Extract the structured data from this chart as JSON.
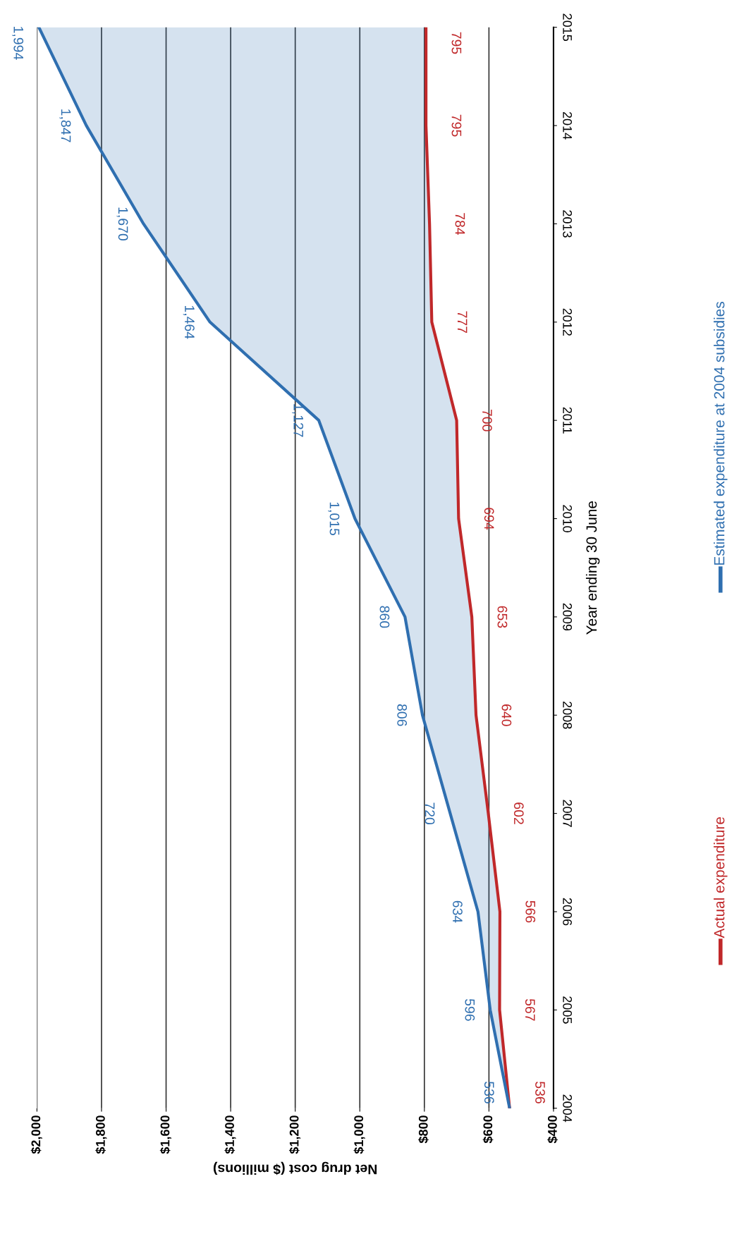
{
  "chart_data": {
    "type": "line",
    "orientation": "horizontal",
    "xlabel": "Net drug cost ($ millions)",
    "ylabel": "Year ending 30 June",
    "categories": [
      "2015",
      "2014",
      "2013",
      "2012",
      "2011",
      "2010",
      "2009",
      "2008",
      "2007",
      "2006",
      "2005",
      "2004"
    ],
    "series": [
      {
        "name": "Actual expenditure",
        "color": "#c0282a",
        "values": [
          795,
          795,
          784,
          777,
          700,
          694,
          653,
          640,
          602,
          566,
          567,
          536
        ],
        "value_labels": [
          "795",
          "795",
          "784",
          "777",
          "700",
          "694",
          "653",
          "640",
          "602",
          "566",
          "567",
          "536"
        ]
      },
      {
        "name": "Estimated expenditure at 2004 subsidies",
        "color": "#2f6fb0",
        "values": [
          1994,
          1847,
          1670,
          1464,
          1127,
          1015,
          860,
          806,
          720,
          634,
          596,
          536
        ],
        "lower": [
          795,
          795,
          784,
          777,
          700,
          694,
          653,
          640,
          602,
          566,
          567,
          536
        ],
        "upper": [
          1994,
          1847,
          1670,
          1464,
          1127,
          1015,
          860,
          806,
          720,
          634,
          596,
          536
        ],
        "value_labels": [
          "1,994",
          "1,847",
          "1,670",
          "1,464",
          "1,127",
          "1,015",
          "860",
          "806",
          "720",
          "634",
          "596",
          "536"
        ]
      }
    ],
    "xlim": [
      2000,
      400
    ],
    "xticks": [
      {
        "value": 400,
        "label": "$400"
      },
      {
        "value": 600,
        "label": "$600"
      },
      {
        "value": 800,
        "label": "$800"
      },
      {
        "value": 1000,
        "label": "$1,000"
      },
      {
        "value": 1200,
        "label": "$1,200"
      },
      {
        "value": 1400,
        "label": "$1,400"
      },
      {
        "value": 1600,
        "label": "$1,600"
      },
      {
        "value": 1800,
        "label": "$1,800"
      },
      {
        "value": 2000,
        "label": "$2,000"
      }
    ],
    "grid": "x",
    "legend": "right",
    "marker": "none",
    "line_style": "solid"
  }
}
